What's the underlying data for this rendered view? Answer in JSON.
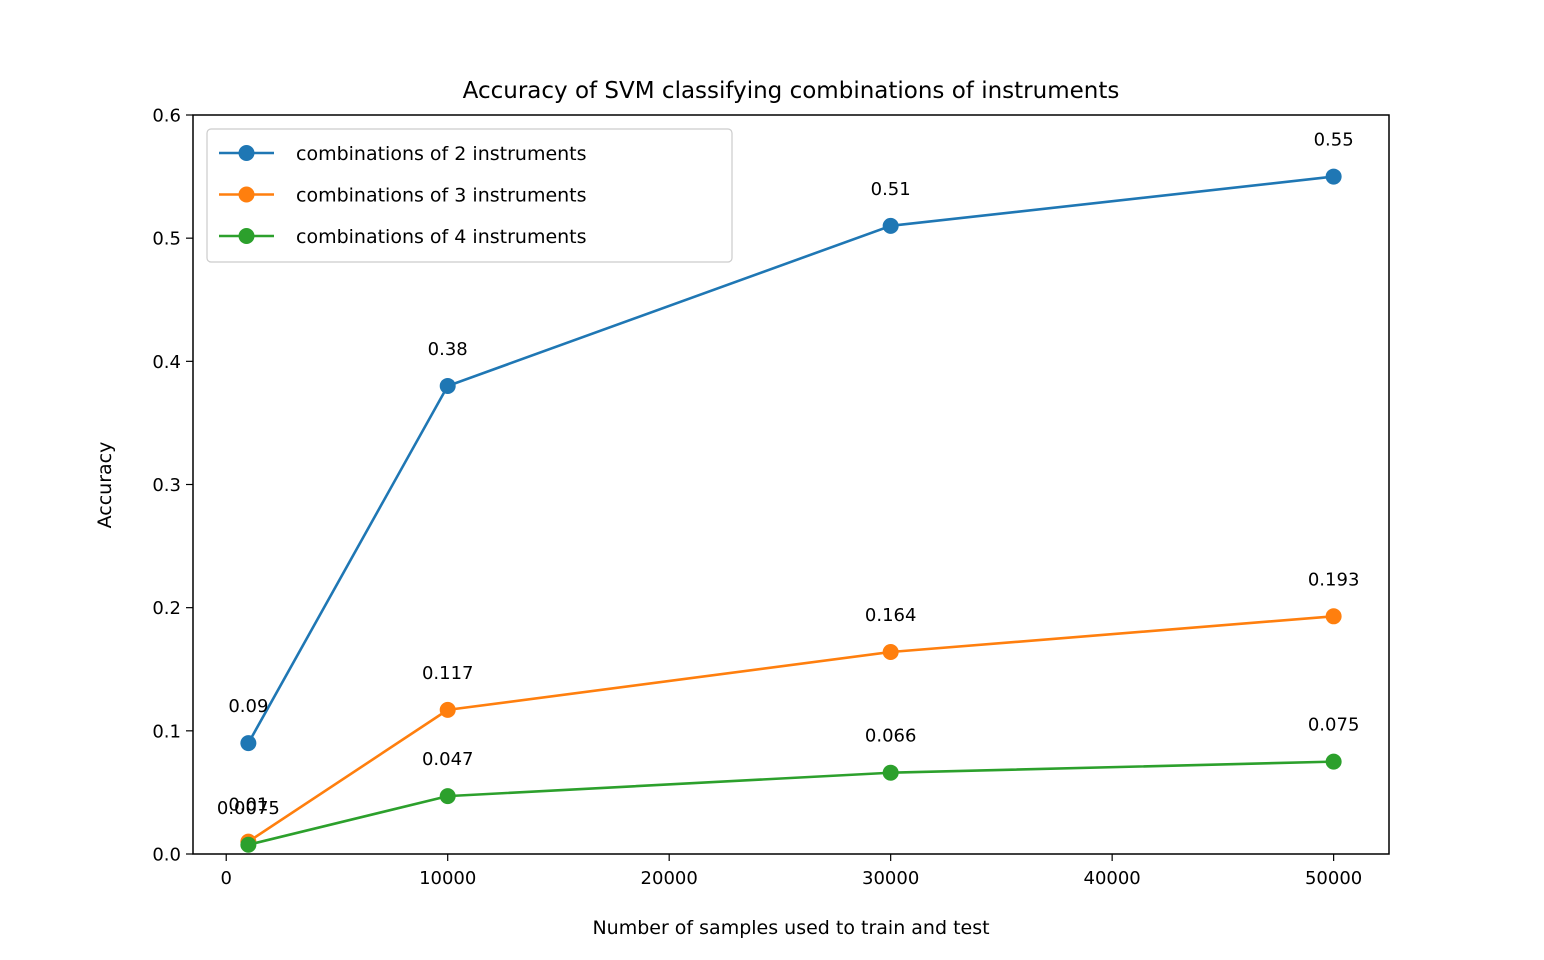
{
  "chart_data": {
    "type": "line",
    "title": "Accuracy of SVM classifying combinations of instruments",
    "xlabel": "Number of samples used to train and test",
    "ylabel": "Accuracy",
    "xlim": [
      -1500,
      52500
    ],
    "ylim": [
      0,
      0.6
    ],
    "xticks": [
      0,
      10000,
      20000,
      30000,
      40000,
      50000
    ],
    "xtick_labels": [
      "0",
      "10000",
      "20000",
      "30000",
      "40000",
      "50000"
    ],
    "yticks": [
      0,
      0.1,
      0.2,
      0.3,
      0.4,
      0.5,
      0.6
    ],
    "ytick_labels": [
      "0.0",
      "0.1",
      "0.2",
      "0.3",
      "0.4",
      "0.5",
      "0.6"
    ],
    "grid": false,
    "legend": "top-left",
    "x": [
      1000,
      10000,
      30000,
      50000
    ],
    "series": [
      {
        "name": "combinations of 2 instruments",
        "color": "#1f77b4",
        "values": [
          0.09,
          0.38,
          0.51,
          0.55
        ],
        "labels": [
          "0.09",
          "0.38",
          "0.51",
          "0.55"
        ]
      },
      {
        "name": "combinations of 3 instruments",
        "color": "#ff7f0e",
        "values": [
          0.01,
          0.117,
          0.164,
          0.193
        ],
        "labels": [
          "0.01",
          "0.117",
          "0.164",
          "0.193"
        ]
      },
      {
        "name": "combinations of 4 instruments",
        "color": "#2ca02c",
        "values": [
          0.0075,
          0.047,
          0.066,
          0.075
        ],
        "labels": [
          "0.0075",
          "0.047",
          "0.066",
          "0.075"
        ]
      }
    ]
  }
}
